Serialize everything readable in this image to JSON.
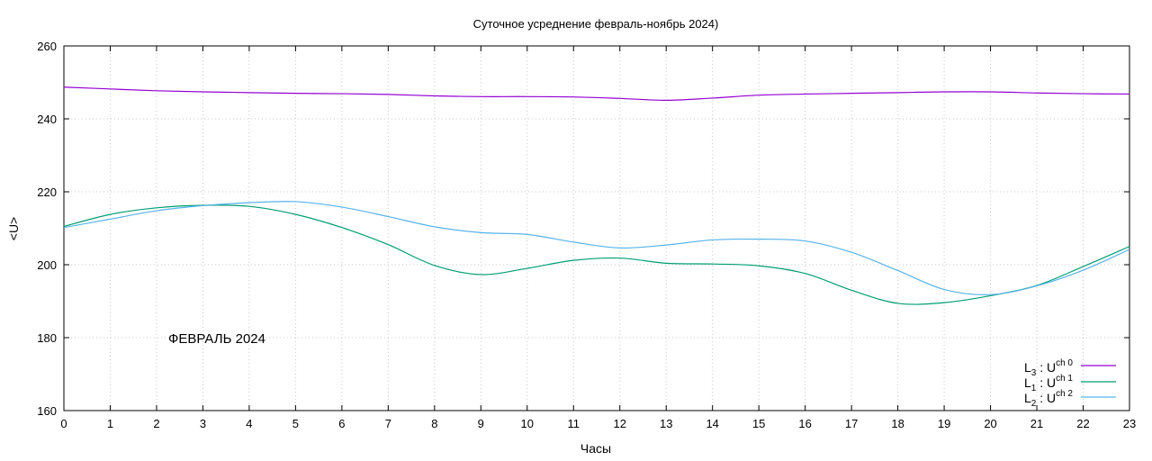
{
  "chart_data": {
    "type": "line",
    "title": "Суточное усреднение февраль-ноябрь 2024)",
    "xlabel": "Часы",
    "ylabel": "<U>",
    "xlim": [
      0,
      23
    ],
    "ylim": [
      160,
      260
    ],
    "xticks": [
      "0",
      "1",
      "2",
      "3",
      "4",
      "5",
      "6",
      "7",
      "8",
      "9",
      "10",
      "11",
      "12",
      "13",
      "14",
      "15",
      "16",
      "17",
      "18",
      "19",
      "20",
      "21",
      "22",
      "23"
    ],
    "yticks": [
      "160",
      "180",
      "200",
      "220",
      "240",
      "260"
    ],
    "grid": true,
    "legend_position": "bottom-right",
    "annotation": "ФЕВРАЛЬ 2024",
    "x": [
      0,
      1,
      2,
      3,
      4,
      5,
      6,
      7,
      8,
      9,
      10,
      11,
      12,
      13,
      14,
      15,
      16,
      17,
      18,
      19,
      20,
      21,
      22,
      23
    ],
    "series": [
      {
        "name": "L3 : U ch 0",
        "label_main": "L",
        "label_sub": "3",
        "label_mid": " : U",
        "label_sup": "ch 0",
        "color": "#9400d3",
        "values": [
          248.7,
          248.2,
          247.7,
          247.4,
          247.2,
          247.0,
          246.9,
          246.7,
          246.3,
          246.1,
          246.1,
          246.0,
          245.6,
          245.1,
          245.7,
          246.5,
          246.8,
          247.0,
          247.2,
          247.4,
          247.4,
          247.1,
          246.9,
          246.8
        ]
      },
      {
        "name": "L1 : U ch 1",
        "label_main": "L",
        "label_sub": "1",
        "label_mid": " : U",
        "label_sup": "ch 1",
        "color": "#009e73",
        "values": [
          210.5,
          213.8,
          215.6,
          216.3,
          216.0,
          213.8,
          210.2,
          205.5,
          199.8,
          197.3,
          199.0,
          201.2,
          201.8,
          200.4,
          200.2,
          199.7,
          197.6,
          193.0,
          189.4,
          189.6,
          191.5,
          194.3,
          199.5,
          205.0
        ]
      },
      {
        "name": "L2 : U ch 2",
        "label_main": "L",
        "label_sub": "2",
        "label_mid": " : U",
        "label_sup": "ch 2",
        "color": "#56b4e9",
        "values": [
          210.2,
          212.5,
          214.8,
          216.2,
          217.0,
          217.3,
          215.8,
          213.2,
          210.4,
          208.8,
          208.3,
          206.2,
          204.6,
          205.4,
          206.8,
          207.0,
          206.5,
          203.4,
          198.4,
          193.2,
          191.8,
          194.2,
          198.5,
          204.2
        ]
      }
    ]
  }
}
